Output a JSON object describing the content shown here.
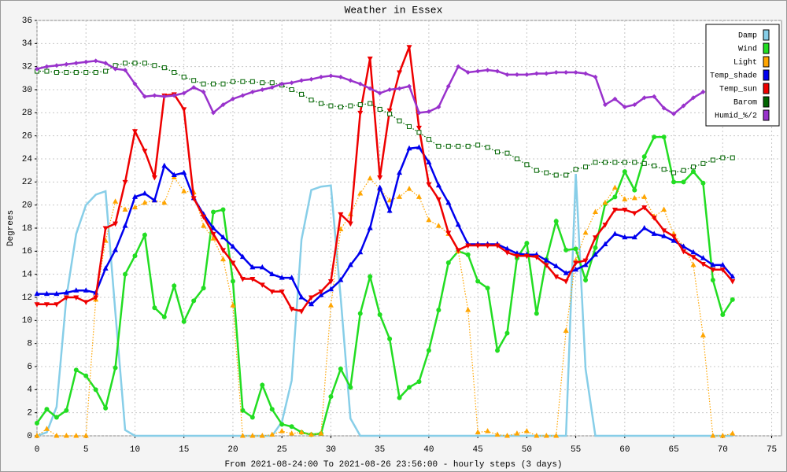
{
  "chart_data": {
    "type": "line",
    "title": "Weather in Essex",
    "x_label": "From 2021-08-24:00 To 2021-08-26 23:56:00 - hourly steps (3 days)",
    "y_label": "Degrees",
    "x": [
      0,
      1,
      2,
      3,
      4,
      5,
      6,
      7,
      8,
      9,
      10,
      11,
      12,
      13,
      14,
      15,
      16,
      17,
      18,
      19,
      20,
      21,
      22,
      23,
      24,
      25,
      26,
      27,
      28,
      29,
      30,
      31,
      32,
      33,
      34,
      35,
      36,
      37,
      38,
      39,
      40,
      41,
      42,
      43,
      44,
      45,
      46,
      47,
      48,
      49,
      50,
      51,
      52,
      53,
      54,
      55,
      56,
      57,
      58,
      59,
      60,
      61,
      62,
      63,
      64,
      65,
      66,
      67,
      68,
      69,
      70,
      71
    ],
    "xlim": [
      0,
      76
    ],
    "xticks": [
      0,
      5,
      10,
      15,
      20,
      25,
      30,
      35,
      40,
      45,
      50,
      55,
      60,
      65,
      70,
      75
    ],
    "ylim": [
      0,
      36
    ],
    "yticks": [
      0,
      2,
      4,
      6,
      8,
      10,
      12,
      14,
      16,
      18,
      20,
      22,
      24,
      26,
      28,
      30,
      32,
      34,
      36
    ],
    "grid": true,
    "legend": "top-right",
    "series": [
      {
        "name": "Damp",
        "color": "#87cee8",
        "marker": "none",
        "dash": "solid",
        "values": [
          0,
          0.3,
          2.5,
          12,
          17.5,
          20,
          20.9,
          21.2,
          10.7,
          0.5,
          0,
          0,
          0,
          0,
          0,
          0,
          0,
          0,
          0,
          0,
          0,
          0,
          0,
          0,
          0,
          1.2,
          4.8,
          17,
          21.3,
          21.6,
          21.7,
          12,
          1.5,
          0,
          0,
          0,
          0,
          0,
          0,
          0,
          0,
          0,
          0,
          0,
          0,
          0,
          0,
          0,
          0,
          0,
          0,
          0,
          0,
          0,
          0,
          22.7,
          5.8,
          0,
          0,
          0,
          0,
          0,
          0,
          0,
          0,
          0,
          0,
          0,
          0,
          0,
          0,
          0
        ]
      },
      {
        "name": "Wind",
        "color": "#22dd22",
        "marker": "circle",
        "dash": "solid",
        "values": [
          1.1,
          2.3,
          1.6,
          2.2,
          5.7,
          5.2,
          4,
          2.4,
          5.9,
          14,
          15.6,
          17.4,
          11.1,
          10.3,
          13,
          9.9,
          11.7,
          12.8,
          19.4,
          19.6,
          13.4,
          2.2,
          1.6,
          4.4,
          2.3,
          1,
          0.8,
          0.3,
          0.1,
          0.2,
          3.4,
          5.8,
          4.2,
          10.6,
          13.8,
          10.5,
          8.4,
          3.3,
          4.2,
          4.7,
          7.4,
          10.9,
          15,
          16,
          15.7,
          13.4,
          12.8,
          7.4,
          8.9,
          15.4,
          16.7,
          10.6,
          15.3,
          18.6,
          16.1,
          16.2,
          13.5,
          16.3,
          20.1,
          20.7,
          22.9,
          21.3,
          24.2,
          25.9,
          25.9,
          22,
          22,
          22.9,
          21.9,
          13.5,
          10.5,
          11.8
        ]
      },
      {
        "name": "Light",
        "color": "#ffa500",
        "marker": "triangle-up",
        "dash": "dotted",
        "values": [
          0,
          0.6,
          0,
          0,
          0,
          0,
          11.8,
          16.9,
          20.3,
          19.6,
          19.8,
          20.2,
          20.4,
          20.2,
          22.4,
          21.2,
          21.1,
          18.2,
          17.1,
          15.3,
          11.3,
          0,
          0,
          0,
          0.1,
          0.4,
          0.2,
          0.3,
          0.1,
          0.2,
          11.3,
          17.9,
          19.2,
          21,
          22.3,
          21.4,
          20.4,
          20.7,
          21.4,
          20.7,
          18.7,
          18.2,
          17.5,
          16,
          10.9,
          0.3,
          0.4,
          0.1,
          0,
          0.2,
          0.4,
          0,
          0,
          0,
          9.1,
          15.2,
          17.6,
          19.4,
          20.2,
          21.5,
          20.5,
          20.6,
          20.7,
          19,
          19.6,
          17.5,
          16.4,
          14.8,
          8.7,
          0,
          0,
          0.2
        ]
      },
      {
        "name": "Temp_shade",
        "color": "#0000ee",
        "marker": "triangle-up",
        "dash": "solid",
        "values": [
          12.3,
          12.3,
          12.3,
          12.4,
          12.6,
          12.6,
          12.4,
          14.5,
          16.1,
          18.2,
          20.7,
          21,
          20.4,
          23.4,
          22.6,
          22.8,
          20.6,
          19.2,
          18,
          17.2,
          16.4,
          15.5,
          14.6,
          14.6,
          14,
          13.7,
          13.7,
          12,
          11.4,
          12.2,
          12.7,
          13.5,
          14.8,
          15.9,
          18,
          21.5,
          19.5,
          22.8,
          24.9,
          25,
          23.7,
          21.7,
          20.2,
          18.3,
          16.6,
          16.6,
          16.6,
          16.6,
          16.2,
          15.8,
          15.7,
          15.7,
          15.2,
          14.7,
          14.1,
          14.4,
          14.8,
          15.7,
          16.6,
          17.5,
          17.2,
          17.2,
          18,
          17.5,
          17.3,
          16.9,
          16.4,
          15.9,
          15.4,
          14.8,
          14.8,
          13.8
        ]
      },
      {
        "name": "Temp_sun",
        "color": "#ee0000",
        "marker": "triangle-down",
        "dash": "solid",
        "values": [
          11.4,
          11.4,
          11.4,
          12,
          12,
          11.6,
          12,
          18,
          18.4,
          22,
          26.4,
          24.7,
          22.4,
          29.5,
          29.6,
          28.3,
          20.6,
          19,
          17.5,
          16.1,
          15,
          13.6,
          13.6,
          13.1,
          12.5,
          12.5,
          11,
          10.8,
          12,
          12.5,
          13.4,
          19.2,
          18.4,
          28,
          32.7,
          22.4,
          28.2,
          31.5,
          33.7,
          26.7,
          21.8,
          20.5,
          17.6,
          16.1,
          16.5,
          16.5,
          16.5,
          16.5,
          15.9,
          15.6,
          15.6,
          15.5,
          14.8,
          13.8,
          13.4,
          15,
          15.2,
          17.2,
          18.3,
          19.6,
          19.6,
          19.3,
          19.8,
          18.9,
          17.8,
          17.3,
          16,
          15.5,
          14.9,
          14.4,
          14.4,
          13.4
        ]
      },
      {
        "name": "Barom",
        "color": "#006400",
        "marker": "square",
        "dash": "dotted",
        "values": [
          31.6,
          31.6,
          31.5,
          31.5,
          31.5,
          31.5,
          31.5,
          31.6,
          32.1,
          32.3,
          32.3,
          32.3,
          32.1,
          31.9,
          31.5,
          31.1,
          30.8,
          30.5,
          30.5,
          30.5,
          30.7,
          30.7,
          30.7,
          30.6,
          30.6,
          30.4,
          30,
          29.6,
          29.1,
          28.8,
          28.6,
          28.5,
          28.6,
          28.7,
          28.8,
          28.3,
          27.9,
          27.3,
          26.8,
          26.3,
          25.7,
          25.1,
          25.1,
          25.1,
          25.1,
          25.2,
          25,
          24.6,
          24.5,
          24,
          23.5,
          23,
          22.8,
          22.6,
          22.6,
          23.1,
          23.3,
          23.7,
          23.7,
          23.7,
          23.7,
          23.7,
          23.6,
          23.4,
          23.1,
          22.8,
          23,
          23.3,
          23.6,
          23.9,
          24.1,
          24.1
        ]
      },
      {
        "name": "Humid_%/2",
        "color": "#9932cc",
        "marker": "diamond",
        "dash": "solid",
        "values": [
          31.8,
          32,
          32.1,
          32.2,
          32.3,
          32.4,
          32.5,
          32.3,
          31.8,
          31.7,
          30.5,
          29.4,
          29.5,
          29.4,
          29.5,
          29.7,
          30.2,
          29.8,
          28,
          28.7,
          29.2,
          29.5,
          29.8,
          30,
          30.2,
          30.5,
          30.6,
          30.8,
          30.9,
          31.1,
          31.2,
          31.1,
          30.8,
          30.5,
          30.1,
          29.7,
          30,
          30.1,
          30.3,
          28,
          28.1,
          28.5,
          30.3,
          32,
          31.5,
          31.6,
          31.7,
          31.6,
          31.3,
          31.3,
          31.3,
          31.4,
          31.4,
          31.5,
          31.5,
          31.5,
          31.4,
          31.1,
          28.7,
          29.2,
          28.5,
          28.7,
          29.3,
          29.4,
          28.4,
          27.9,
          28.6,
          29.3,
          29.8,
          null,
          null,
          null
        ]
      }
    ]
  }
}
